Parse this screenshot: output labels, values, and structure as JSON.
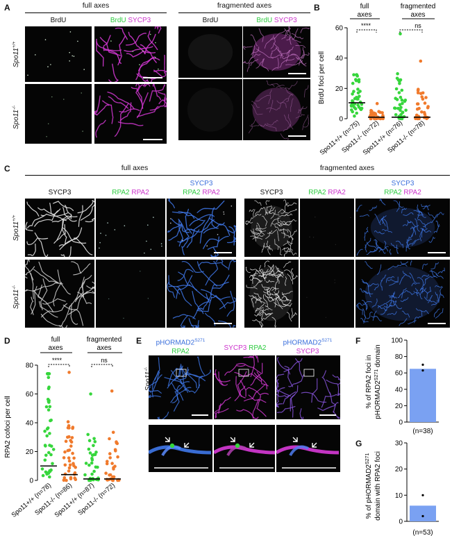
{
  "colors": {
    "green": "#36d63c",
    "magenta": "#d83ad8",
    "blue": "#3f78ea",
    "orange": "#f07a2c",
    "bar": "#7aa1f2"
  },
  "panelA": {
    "label": "A",
    "full_axes": "full axes",
    "fragmented_axes": "fragmented axes",
    "brdu": "BrdU",
    "sycp3": "SYCP3",
    "wt": "Spo11",
    "wt_sup": "+/+",
    "ko": "Spo11",
    "ko_sup": "-/-"
  },
  "panelB": {
    "label": "B",
    "full_axes_1": "full",
    "full_axes_2": "axes",
    "frag_axes_1": "fragmented",
    "frag_axes_2": "axes",
    "sig1": "****",
    "sig2": "ns",
    "ylabel": "BrdU foci per cell"
  },
  "panelC": {
    "label": "C",
    "full_axes": "full axes",
    "fragmented_axes": "fragmented axes",
    "sycp3": "SYCP3",
    "rpa2": "RPA2",
    "wt": "Spo11",
    "wt_sup": "+/+",
    "ko": "Spo11",
    "ko_sup": "-/-"
  },
  "panelD": {
    "label": "D",
    "full_axes_1": "full",
    "full_axes_2": "axes",
    "frag_axes_1": "fragmented",
    "frag_axes_2": "axes",
    "sig1": "****",
    "sig2": "ns",
    "ylabel": "RPA2 cofoci per cell"
  },
  "panelE": {
    "label": "E",
    "phormad": "pHORMAD2",
    "phormad_sup": "S271",
    "rpa2": "RPA2",
    "sycp3": "SYCP3",
    "ko": "Spo11",
    "ko_sup": "-/-"
  },
  "panelF": {
    "label": "F",
    "ylabel_1": "% of RPA2 foci in",
    "ylabel_2": "pHORMAD2",
    "ylabel_sup": "S271",
    "ylabel_3": " domain"
  },
  "panelG": {
    "label": "G",
    "ylabel_1": "% of  pHORMAD2",
    "ylabel_sup": "S271",
    "ylabel_2": "domain with RPA2 foci"
  },
  "chart_data": [
    {
      "type": "scatter",
      "panel": "B",
      "ylabel": "BrdU foci per cell",
      "ylim": [
        0,
        60
      ],
      "yticks": [
        0,
        20,
        40,
        60
      ],
      "categories": [
        "Spo11+/+ (n=75)",
        "Spo11-/- (n=72)",
        "Spo11+/+ (n=76)",
        "Spo11-/- (n=78)"
      ],
      "median": [
        10.5,
        1,
        1,
        1
      ],
      "max": [
        29,
        10,
        56,
        38
      ],
      "series_colors": [
        "#36d63c",
        "#f07a2c",
        "#36d63c",
        "#f07a2c"
      ]
    },
    {
      "type": "scatter",
      "panel": "D",
      "ylabel": "RPA2 cofoci per cell",
      "ylim": [
        0,
        80
      ],
      "yticks": [
        0,
        20,
        40,
        60,
        80
      ],
      "categories": [
        "Spo11+/+ (n=78)",
        "Spo11-/- (n=86)",
        "Spo11+/+ (n=87)",
        "Spo11-/- (n=72)"
      ],
      "median": [
        10,
        4,
        1,
        1
      ],
      "max": [
        74,
        75,
        60,
        62
      ],
      "series_colors": [
        "#36d63c",
        "#f07a2c",
        "#36d63c",
        "#f07a2c"
      ]
    },
    {
      "type": "bar",
      "panel": "F",
      "ylim": [
        0,
        100
      ],
      "yticks": [
        0,
        20,
        40,
        60,
        80,
        100
      ],
      "categories": [
        "(n=38)"
      ],
      "values": [
        65
      ],
      "points": [
        63,
        70
      ]
    },
    {
      "type": "bar",
      "panel": "G",
      "ylim": [
        0,
        30
      ],
      "yticks": [
        0,
        10,
        20,
        30
      ],
      "categories": [
        "(n=53)"
      ],
      "values": [
        6
      ],
      "points": [
        2,
        10
      ]
    }
  ]
}
